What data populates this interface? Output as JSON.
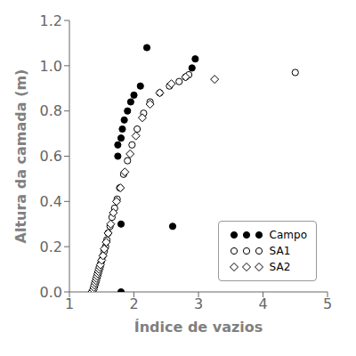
{
  "chart_data": {
    "type": "scatter",
    "xlabel": "Índice de vazios",
    "ylabel": "Altura da camada (m)",
    "xlim": [
      1.0,
      5.0
    ],
    "ylim": [
      0.0,
      1.2
    ],
    "xticks": [
      1,
      2,
      3,
      4,
      5
    ],
    "yticks": [
      {
        "value": 0.0,
        "label": "0.0"
      },
      0.2,
      0.4,
      0.6,
      0.8,
      {
        "value": 1.0,
        "label": "1.0"
      },
      1.2
    ],
    "grid": false,
    "legend": "lower right",
    "series": [
      {
        "name": "Campo",
        "color": "#000000",
        "marker": "filled_circle",
        "x": [
          1.8,
          1.8,
          1.75,
          1.75,
          1.8,
          1.82,
          1.85,
          1.9,
          1.95,
          2.0,
          2.1,
          2.2,
          2.6,
          2.8,
          2.9,
          2.95
        ],
        "y": [
          0.0,
          0.3,
          0.6,
          0.65,
          0.68,
          0.72,
          0.76,
          0.8,
          0.84,
          0.87,
          0.91,
          1.08,
          0.29,
          0.95,
          0.99,
          1.03
        ]
      },
      {
        "name": "SA1",
        "color": "#000000",
        "marker": "open_circle",
        "x": [
          1.35,
          1.37,
          1.38,
          1.39,
          1.4,
          1.41,
          1.42,
          1.43,
          1.44,
          1.45,
          1.46,
          1.47,
          1.48,
          1.49,
          1.5,
          1.52,
          1.54,
          1.56,
          1.58,
          1.6,
          1.63,
          1.66,
          1.7,
          1.74,
          1.78,
          1.84,
          1.9,
          1.97,
          2.05,
          2.15,
          2.25,
          2.4,
          2.55,
          2.7,
          2.85,
          4.5
        ],
        "y": [
          0.0,
          0.01,
          0.02,
          0.03,
          0.04,
          0.05,
          0.06,
          0.07,
          0.08,
          0.09,
          0.1,
          0.11,
          0.12,
          0.13,
          0.14,
          0.16,
          0.18,
          0.2,
          0.23,
          0.26,
          0.29,
          0.33,
          0.37,
          0.41,
          0.46,
          0.52,
          0.58,
          0.65,
          0.72,
          0.79,
          0.84,
          0.88,
          0.91,
          0.93,
          0.96,
          0.97
        ]
      },
      {
        "name": "SA2",
        "color": "#000000",
        "marker": "open_diamond",
        "x": [
          1.35,
          1.37,
          1.38,
          1.39,
          1.4,
          1.41,
          1.42,
          1.43,
          1.44,
          1.45,
          1.46,
          1.47,
          1.48,
          1.5,
          1.52,
          1.54,
          1.57,
          1.6,
          1.64,
          1.68,
          1.73,
          1.79,
          1.86,
          1.94,
          2.03,
          2.13,
          2.25,
          2.4,
          2.58,
          2.8,
          3.25
        ],
        "y": [
          0.0,
          0.01,
          0.02,
          0.03,
          0.04,
          0.05,
          0.06,
          0.07,
          0.08,
          0.09,
          0.1,
          0.11,
          0.12,
          0.14,
          0.16,
          0.19,
          0.22,
          0.26,
          0.3,
          0.35,
          0.4,
          0.46,
          0.53,
          0.61,
          0.69,
          0.77,
          0.83,
          0.88,
          0.92,
          0.95,
          0.94
        ]
      }
    ]
  }
}
